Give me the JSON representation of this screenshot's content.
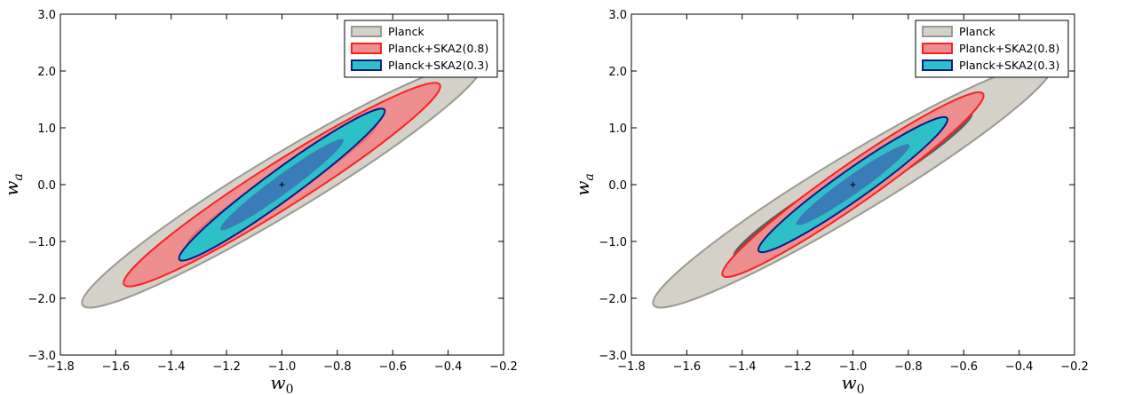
{
  "chart_data": [
    {
      "type": "area",
      "xlabel": "w",
      "xlabel_sub": "0",
      "ylabel": "w",
      "ylabel_sub": "a",
      "xlim": [
        -1.8,
        -0.2
      ],
      "ylim": [
        -3.0,
        3.0
      ],
      "xticks": [
        -1.8,
        -1.6,
        -1.4,
        -1.2,
        -1.0,
        -0.8,
        -0.6,
        -0.4,
        -0.2
      ],
      "xtick_labels": [
        "−1.8",
        "−1.6",
        "−1.4",
        "−1.2",
        "−1.0",
        "−0.8",
        "−0.6",
        "−0.4",
        "−0.2"
      ],
      "yticks": [
        -3.0,
        -2.0,
        -1.0,
        0.0,
        1.0,
        2.0,
        3.0
      ],
      "ytick_labels": [
        "−3.0",
        "−2.0",
        "−1.0",
        "0.0",
        "1.0",
        "2.0",
        "3.0"
      ],
      "fiducial": [
        -1.0,
        0.0
      ],
      "legend_position": "top-right",
      "series": [
        {
          "name": "Planck",
          "fill": "#d4d2c8",
          "inner_fill": "#bcbab0",
          "edge": "#9a9a92",
          "center": [
            -1.0,
            0.0
          ],
          "outer": {
            "w0_range": [
              -1.72,
              -0.28
            ],
            "wa_range": [
              -2.12,
              2.12
            ],
            "area_frac": 0.125
          },
          "inner_scale": 0.6
        },
        {
          "name": "Planck+SKA2(0.8)",
          "fill": "#ee8e8e",
          "inner_fill": "#e27474",
          "edge": "#ff2020",
          "center": [
            -1.0,
            0.0
          ],
          "outer": {
            "w0_range": [
              -1.57,
              -0.43
            ],
            "wa_range": [
              -1.76,
              1.76
            ],
            "area_frac": 0.12
          },
          "inner_scale": 0.6
        },
        {
          "name": "Planck+SKA2(0.3)",
          "fill": "#2ec0c8",
          "inner_fill": "#3a7cb8",
          "edge": "#0e1a86",
          "center": [
            -1.0,
            0.0
          ],
          "outer": {
            "w0_range": [
              -1.37,
              -0.63
            ],
            "wa_range": [
              -1.32,
              1.32
            ],
            "area_frac": 0.12
          },
          "inner_scale": 0.6
        }
      ]
    },
    {
      "type": "area",
      "xlabel": "w",
      "xlabel_sub": "0",
      "ylabel": "w",
      "ylabel_sub": "a",
      "xlim": [
        -1.8,
        -0.2
      ],
      "ylim": [
        -3.0,
        3.0
      ],
      "xticks": [
        -1.8,
        -1.6,
        -1.4,
        -1.2,
        -1.0,
        -0.8,
        -0.6,
        -0.4,
        -0.2
      ],
      "xtick_labels": [
        "−1.8",
        "−1.6",
        "−1.4",
        "−1.2",
        "−1.0",
        "−0.8",
        "−0.6",
        "−0.4",
        "−0.2"
      ],
      "yticks": [
        -3.0,
        -2.0,
        -1.0,
        0.0,
        1.0,
        2.0,
        3.0
      ],
      "ytick_labels": [
        "−3.0",
        "−2.0",
        "−1.0",
        "0.0",
        "1.0",
        "2.0",
        "3.0"
      ],
      "fiducial": [
        -1.0,
        0.0
      ],
      "legend_position": "top-right",
      "series": [
        {
          "name": "Planck",
          "fill": "#d4d2c8",
          "inner_fill": "#5e5e5a",
          "edge": "#9a9a92",
          "center": [
            -1.0,
            0.0
          ],
          "outer": {
            "w0_range": [
              -1.72,
              -0.28
            ],
            "wa_range": [
              -2.12,
              2.12
            ],
            "area_frac": 0.125
          },
          "inner_scale": 0.6
        },
        {
          "name": "Planck+SKA2(0.8)",
          "fill": "#ee8e8e",
          "inner_fill": "#e27474",
          "edge": "#ff2020",
          "center": [
            -1.0,
            0.0
          ],
          "outer": {
            "w0_range": [
              -1.47,
              -0.53
            ],
            "wa_range": [
              -1.6,
              1.6
            ],
            "area_frac": 0.125
          },
          "inner_scale": 0.6
        },
        {
          "name": "Planck+SKA2(0.3)",
          "fill": "#2ec0c8",
          "inner_fill": "#3a7cb8",
          "edge": "#0e1a86",
          "center": [
            -1.0,
            0.0
          ],
          "outer": {
            "w0_range": [
              -1.34,
              -0.66
            ],
            "wa_range": [
              -1.17,
              1.17
            ],
            "area_frac": 0.13
          },
          "inner_scale": 0.6
        }
      ]
    }
  ]
}
